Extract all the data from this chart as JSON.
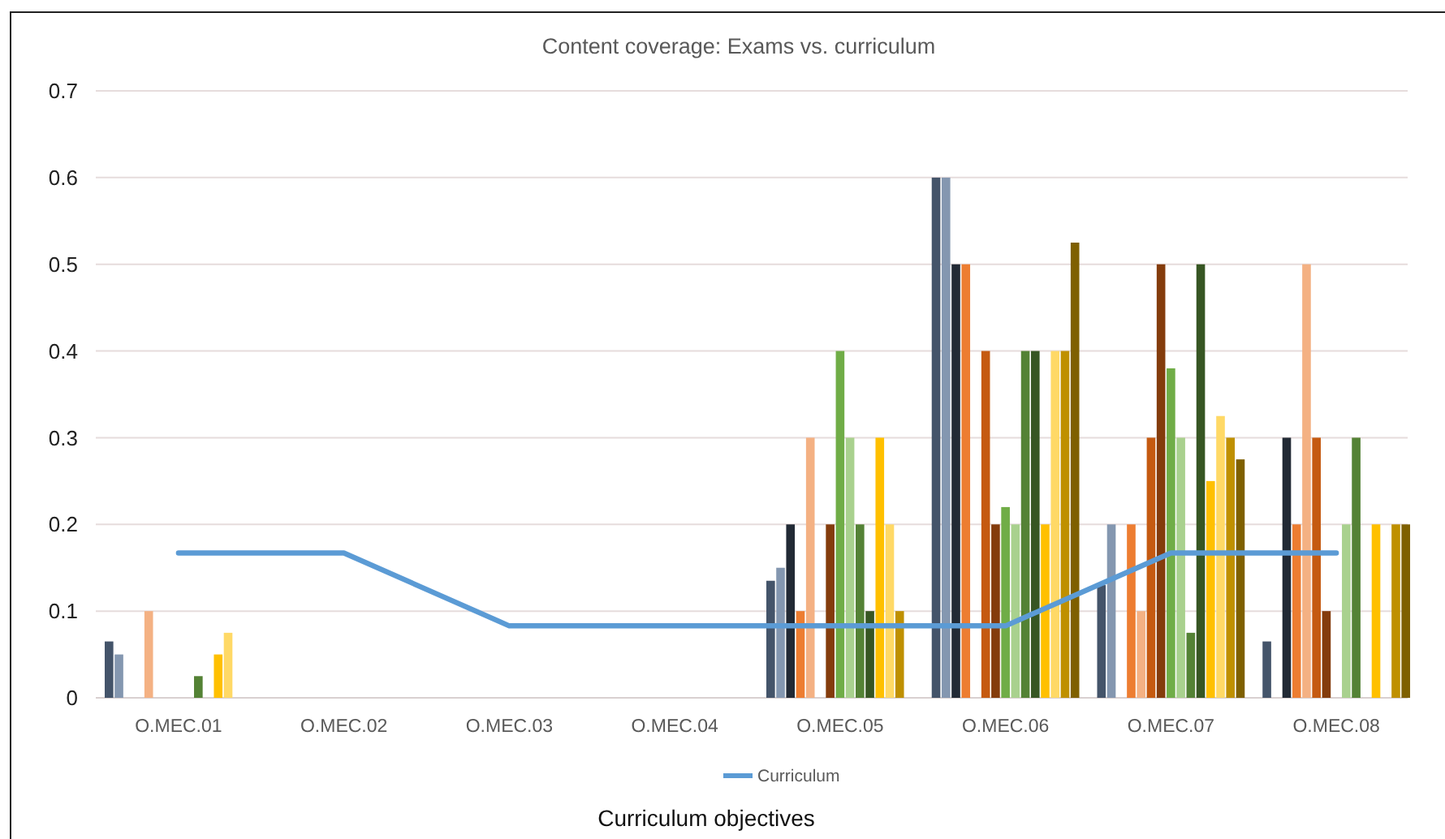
{
  "chart_data": {
    "type": "bar",
    "title": "Content coverage: Exams vs. curriculum",
    "xlabel": "Curriculum objectives",
    "categories": [
      "O.MEC.01",
      "O.MEC.02",
      "O.MEC.03",
      "O.MEC.04",
      "O.MEC.05",
      "O.MEC.06",
      "O.MEC.07",
      "O.MEC.08"
    ],
    "series": [
      {
        "color": "#44546a",
        "values": [
          0.065,
          null,
          null,
          null,
          0.135,
          0.6,
          0.13,
          0.065
        ]
      },
      {
        "color": "#8497b0",
        "values": [
          0.05,
          null,
          null,
          null,
          0.15,
          0.6,
          0.2,
          null
        ]
      },
      {
        "color": "#222a35",
        "values": [
          null,
          null,
          null,
          null,
          0.2,
          0.5,
          null,
          0.3
        ]
      },
      {
        "color": "#ed7d31",
        "values": [
          null,
          null,
          null,
          null,
          0.1,
          0.5,
          0.2,
          0.2
        ]
      },
      {
        "color": "#f4b183",
        "values": [
          0.1,
          null,
          null,
          null,
          0.3,
          null,
          0.1,
          0.5
        ]
      },
      {
        "color": "#c55a11",
        "values": [
          null,
          null,
          null,
          null,
          null,
          0.4,
          0.3,
          0.3
        ]
      },
      {
        "color": "#843c0c",
        "values": [
          null,
          null,
          null,
          null,
          0.2,
          0.2,
          0.5,
          0.1
        ]
      },
      {
        "color": "#70ad47",
        "values": [
          null,
          null,
          null,
          null,
          0.4,
          0.22,
          0.38,
          null
        ]
      },
      {
        "color": "#a9d18e",
        "values": [
          null,
          null,
          null,
          null,
          0.3,
          0.2,
          0.3,
          0.2
        ]
      },
      {
        "color": "#548235",
        "values": [
          0.025,
          null,
          null,
          null,
          0.2,
          0.4,
          0.075,
          0.3
        ]
      },
      {
        "color": "#375623",
        "values": [
          null,
          null,
          null,
          null,
          0.1,
          0.4,
          0.5,
          null
        ]
      },
      {
        "color": "#ffc000",
        "values": [
          0.05,
          null,
          null,
          null,
          0.3,
          0.2,
          0.25,
          0.2
        ]
      },
      {
        "color": "#ffd966",
        "values": [
          0.075,
          null,
          null,
          null,
          0.2,
          0.4,
          0.325,
          null
        ]
      },
      {
        "color": "#bf9000",
        "values": [
          null,
          null,
          null,
          null,
          0.1,
          0.4,
          0.3,
          0.2
        ]
      },
      {
        "color": "#7f6000",
        "values": [
          null,
          null,
          null,
          null,
          null,
          0.525,
          0.275,
          0.2
        ]
      },
      {
        "type": "line",
        "name": "Curriculum",
        "color": "#5b9bd5",
        "values": [
          0.167,
          0.167,
          0.083,
          0.083,
          0.083,
          0.083,
          0.167,
          0.167
        ]
      }
    ],
    "ylim": [
      0,
      0.7
    ],
    "yticks": [
      0,
      0.1,
      0.2,
      0.3,
      0.4,
      0.5,
      0.6,
      0.7
    ],
    "grid": "y",
    "legend": "bottom"
  }
}
